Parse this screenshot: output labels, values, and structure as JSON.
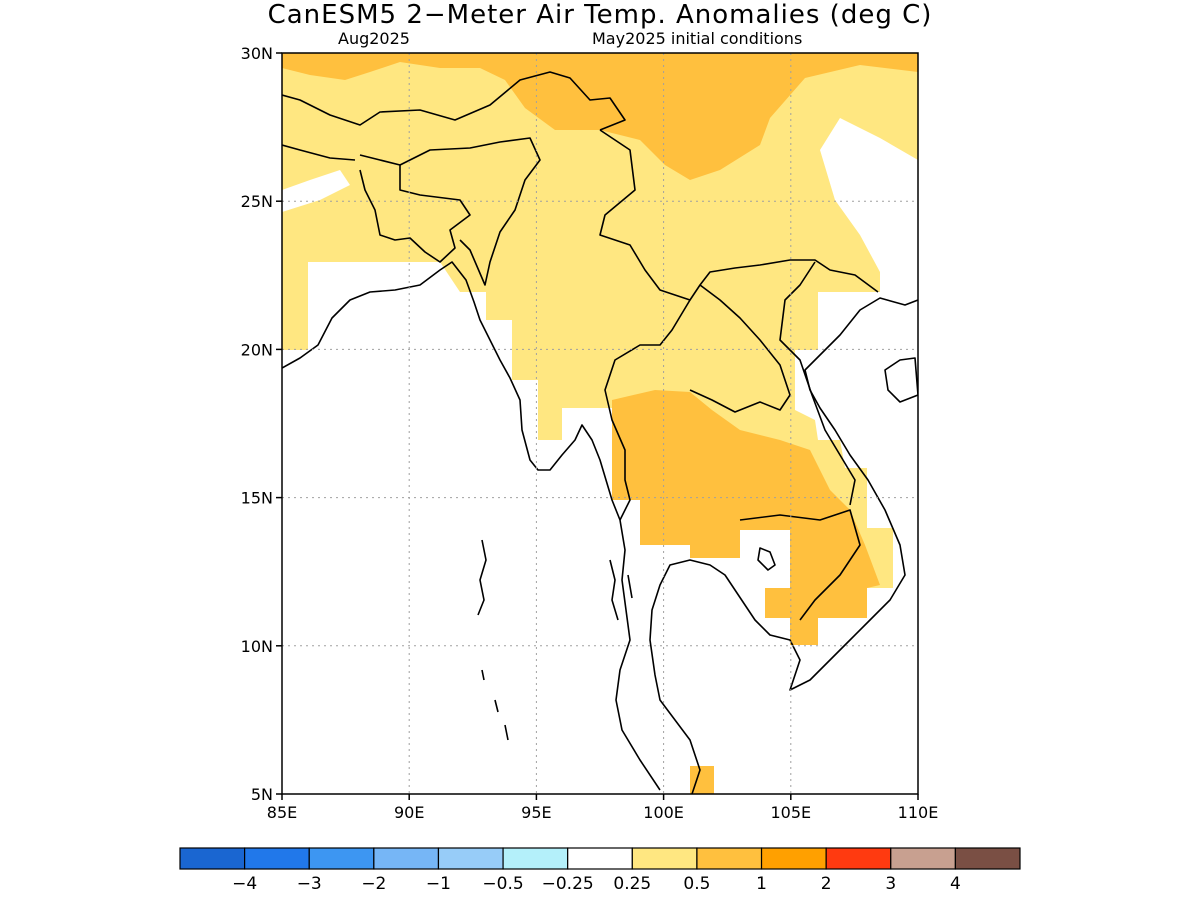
{
  "title": "CanESM5 2−Meter Air Temp. Anomalies (deg C)",
  "subtitle_left": "Aug2025",
  "subtitle_right": "May2025 initial conditions",
  "map": {
    "lon_range": [
      85,
      110
    ],
    "lat_range": [
      5,
      30
    ],
    "x_ticks": [
      "85E",
      "90E",
      "95E",
      "100E",
      "105E",
      "110E"
    ],
    "y_ticks": [
      "5N",
      "10N",
      "15N",
      "20N",
      "25N",
      "30N"
    ],
    "grid": true
  },
  "colorbar": {
    "colors": [
      "#1a66d1",
      "#2178ea",
      "#3d96f2",
      "#76b6f6",
      "#97ccf8",
      "#b4f0fa",
      "#ffffff",
      "#ffe781",
      "#ffc03e",
      "#ffa000",
      "#ff3a10",
      "#c8a090",
      "#7a4f44"
    ],
    "labels": [
      "−4",
      "−3",
      "−2",
      "−1",
      "−0.5",
      "−0.25",
      "0.25",
      "0.5",
      "1",
      "2",
      "3",
      "4"
    ]
  },
  "fill_colors": {
    "light": "#ffe781",
    "medium": "#ffc03e"
  }
}
